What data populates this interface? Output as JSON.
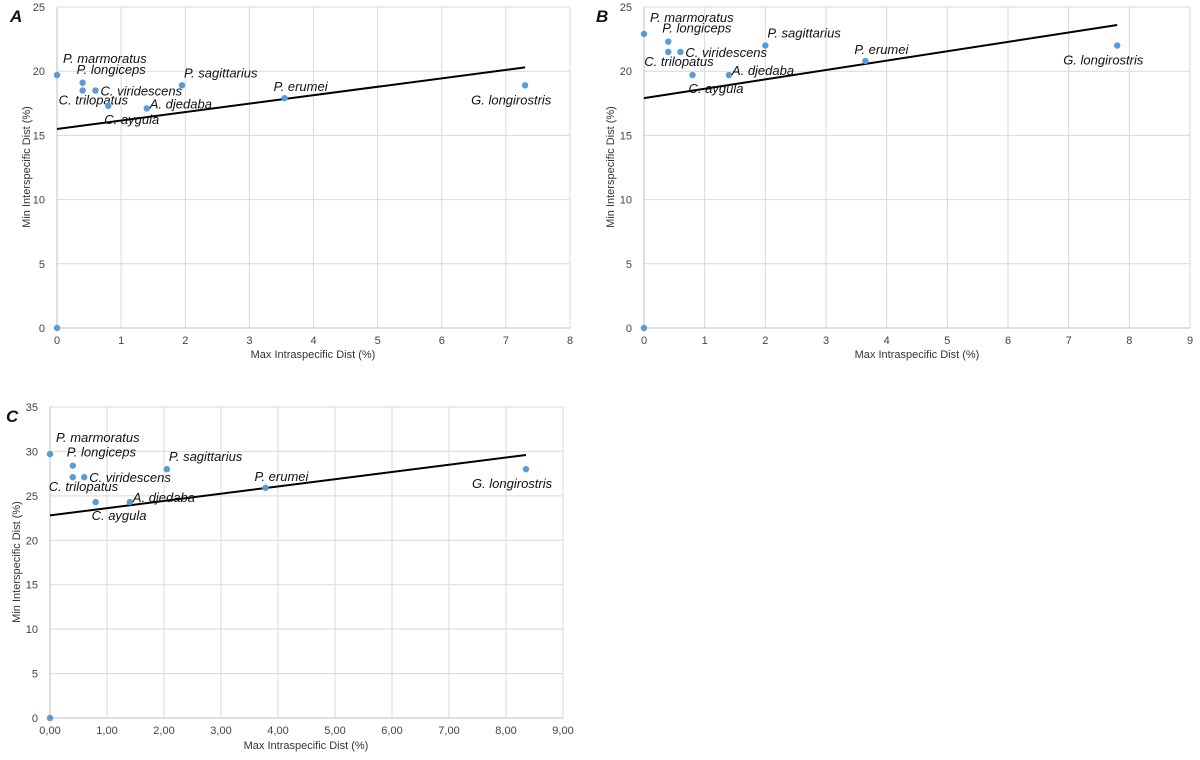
{
  "chart_data": [
    {
      "type": "scatter",
      "panel": "A",
      "xlabel": "Max Intraspecific Dist (%)",
      "ylabel": "Min Interspecific Dist (%)",
      "xlim": [
        0,
        8
      ],
      "ylim": [
        0,
        25
      ],
      "xticks": [
        "0",
        "1",
        "2",
        "3",
        "4",
        "5",
        "6",
        "7",
        "8"
      ],
      "yticks": [
        "0",
        "5",
        "10",
        "15",
        "20",
        "25"
      ],
      "grid": true,
      "color": "#5b9bd5",
      "trendline": {
        "x": [
          0,
          7.3
        ],
        "y": [
          15.5,
          20.3
        ]
      },
      "points": [
        {
          "label": "",
          "x": 0,
          "y": 0
        },
        {
          "label": "P. marmoratus",
          "x": 0,
          "y": 19.7
        },
        {
          "label": "P. longiceps",
          "x": 0.4,
          "y": 19.1
        },
        {
          "label": "C. trilopatus",
          "x": 0.4,
          "y": 18.5
        },
        {
          "label": "C. viridescens",
          "x": 0.6,
          "y": 18.5
        },
        {
          "label": "C. aygula",
          "x": 0.8,
          "y": 17.3
        },
        {
          "label": "A. djedaba",
          "x": 1.4,
          "y": 17.1
        },
        {
          "label": "P. sagittarius",
          "x": 1.95,
          "y": 18.9
        },
        {
          "label": "P. erumei",
          "x": 3.55,
          "y": 17.9
        },
        {
          "label": "G. longirostris",
          "x": 7.3,
          "y": 18.9
        }
      ]
    },
    {
      "type": "scatter",
      "panel": "B",
      "xlabel": "Max Intraspecific Dist (%)",
      "ylabel": "Min Interspecific Dist (%)",
      "xlim": [
        0,
        9
      ],
      "ylim": [
        0,
        25
      ],
      "xticks": [
        "0",
        "1",
        "2",
        "3",
        "4",
        "5",
        "6",
        "7",
        "8",
        "9"
      ],
      "yticks": [
        "0",
        "5",
        "10",
        "15",
        "20",
        "25"
      ],
      "grid": true,
      "color": "#5b9bd5",
      "trendline": {
        "x": [
          0,
          7.8
        ],
        "y": [
          17.9,
          23.6
        ]
      },
      "points": [
        {
          "label": "",
          "x": 0,
          "y": 0
        },
        {
          "label": "P. marmoratus",
          "x": 0,
          "y": 22.9
        },
        {
          "label": "P. longiceps",
          "x": 0.4,
          "y": 22.3
        },
        {
          "label": "C. trilopatus",
          "x": 0.4,
          "y": 21.5
        },
        {
          "label": "C. viridescens",
          "x": 0.6,
          "y": 21.5
        },
        {
          "label": "C. aygula",
          "x": 0.8,
          "y": 19.7
        },
        {
          "label": "A. djedaba",
          "x": 1.4,
          "y": 19.7
        },
        {
          "label": "P. sagittarius",
          "x": 2.0,
          "y": 22.0
        },
        {
          "label": "P. erumei",
          "x": 3.65,
          "y": 20.8
        },
        {
          "label": "G. longirostris",
          "x": 7.8,
          "y": 22.0
        }
      ]
    },
    {
      "type": "scatter",
      "panel": "C",
      "xlabel": "Max Intraspecific Dist (%)",
      "ylabel": "Min Interspecific Dist (%)",
      "xlim": [
        0,
        9
      ],
      "ylim": [
        0,
        35
      ],
      "xticks": [
        "0,00",
        "1,00",
        "2,00",
        "3,00",
        "4,00",
        "5,00",
        "6,00",
        "7,00",
        "8,00",
        "9,00"
      ],
      "yticks": [
        "0",
        "5",
        "10",
        "15",
        "20",
        "25",
        "30",
        "35"
      ],
      "grid": true,
      "color": "#5b9bd5",
      "trendline": {
        "x": [
          0,
          8.35
        ],
        "y": [
          22.8,
          29.6
        ]
      },
      "points": [
        {
          "label": "",
          "x": 0,
          "y": 0
        },
        {
          "label": "P. marmoratus",
          "x": 0,
          "y": 29.7
        },
        {
          "label": "P. longiceps",
          "x": 0.4,
          "y": 28.4
        },
        {
          "label": "C. trilopatus",
          "x": 0.4,
          "y": 27.1
        },
        {
          "label": "C. viridescens",
          "x": 0.6,
          "y": 27.1
        },
        {
          "label": "C. aygula",
          "x": 0.8,
          "y": 24.3
        },
        {
          "label": "A. djedaba",
          "x": 1.4,
          "y": 24.3
        },
        {
          "label": "P. sagittarius",
          "x": 2.05,
          "y": 28.0
        },
        {
          "label": "P. erumei",
          "x": 3.78,
          "y": 25.9
        },
        {
          "label": "G. longirostris",
          "x": 8.35,
          "y": 28.0
        }
      ]
    }
  ]
}
